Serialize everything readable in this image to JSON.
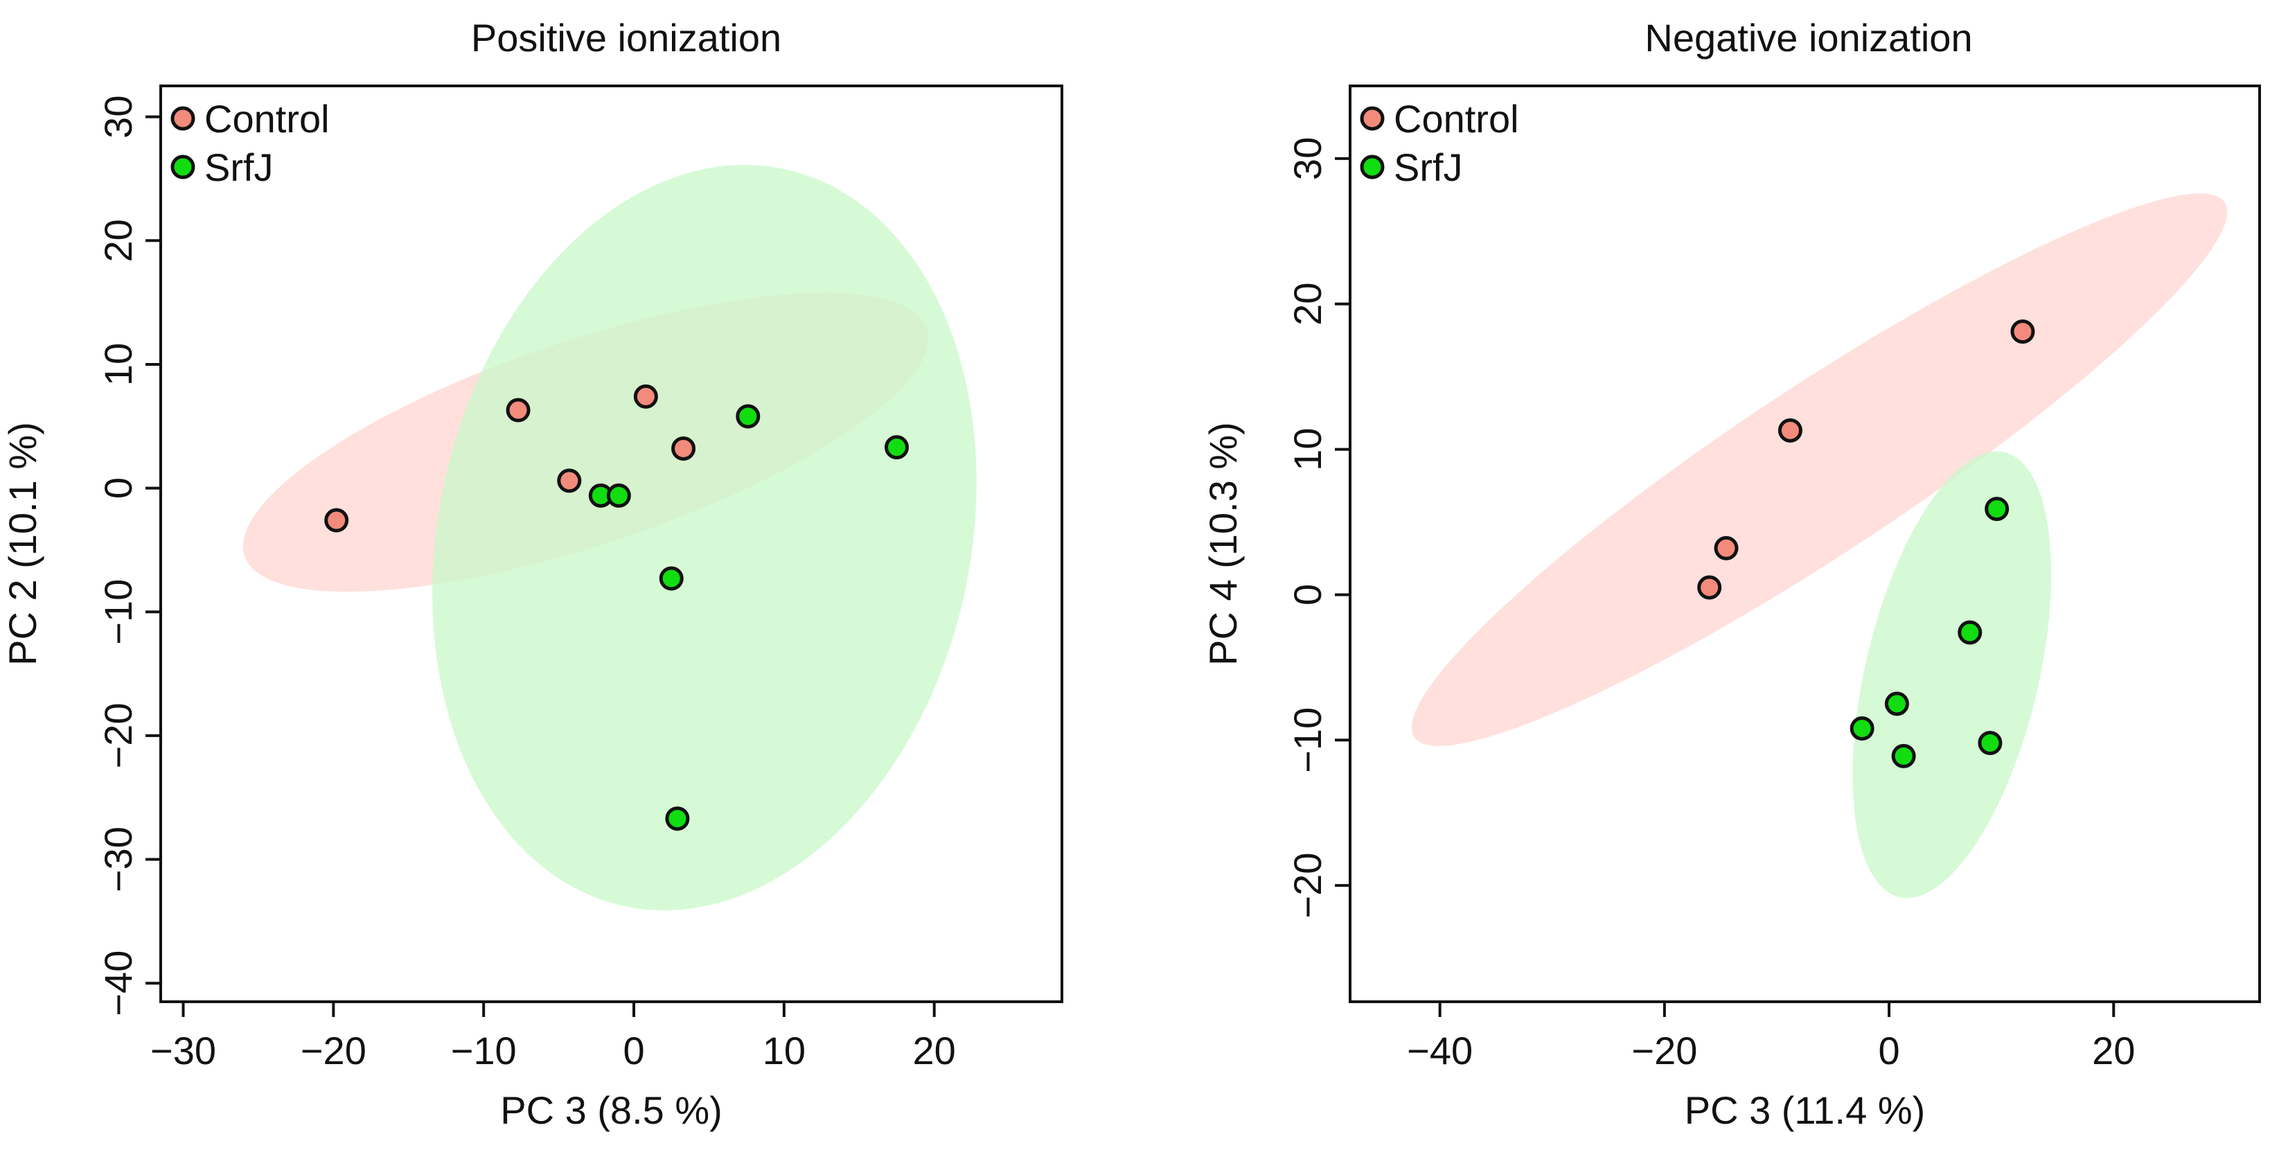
{
  "colors": {
    "control_point": "#f28b7c",
    "control_ellipse": "#ffd6d2",
    "srfj_point": "#11dd11",
    "srfj_ellipse": "#c8f8c8",
    "axis": "#111111"
  },
  "chart_data": [
    {
      "type": "scatter",
      "title": "Positive ionization",
      "xlabel": "PC 3 (8.5 %)",
      "ylabel": "PC 2 (10.1 %)",
      "xlim": [
        -31.5,
        28.5
      ],
      "ylim": [
        -41.5,
        32.5
      ],
      "xticks": [
        -30,
        -20,
        -10,
        0,
        10,
        20
      ],
      "yticks": [
        -40,
        -30,
        -20,
        -10,
        0,
        10,
        20,
        30
      ],
      "xtick_labels": [
        "−30",
        "−20",
        "−10",
        "0",
        "10",
        "20"
      ],
      "ytick_labels": [
        "−40",
        "−30",
        "−20",
        "−10",
        "0",
        "10",
        "20",
        "30"
      ],
      "legend_position": "top-left",
      "grid": false,
      "series": [
        {
          "name": "Control",
          "color_key": "control",
          "points": [
            [
              -19.8,
              -2.6
            ],
            [
              -7.7,
              6.3
            ],
            [
              -4.3,
              0.6
            ],
            [
              0.8,
              7.4
            ],
            [
              3.3,
              3.2
            ]
          ],
          "ellipse": {
            "center": [
              -3.2,
              3.7
            ],
            "semi_axes": [
              24.5,
              8.0
            ],
            "angle_deg": 22
          }
        },
        {
          "name": "SrfJ",
          "color_key": "srfj",
          "points": [
            [
              -2.2,
              -0.6
            ],
            [
              -1.0,
              -0.6
            ],
            [
              2.5,
              -7.3
            ],
            [
              7.6,
              5.8
            ],
            [
              17.5,
              3.3
            ],
            [
              2.9,
              -26.7
            ]
          ],
          "ellipse": {
            "center": [
              4.7,
              -4.0
            ],
            "semi_axes": [
              17.9,
              30.0
            ],
            "angle_deg": -15
          }
        }
      ]
    },
    {
      "type": "scatter",
      "title": "Negative ionization",
      "xlabel": "PC 3 (11.4 %)",
      "ylabel": "PC 4 (10.3 %)",
      "xlim": [
        -48,
        33
      ],
      "ylim": [
        -28,
        35
      ],
      "xticks": [
        -40,
        -20,
        0,
        20
      ],
      "yticks": [
        -20,
        -10,
        0,
        10,
        20,
        30
      ],
      "xtick_labels": [
        "−40",
        "−20",
        "0",
        "20"
      ],
      "ytick_labels": [
        "−20",
        "−10",
        "0",
        "10",
        "20",
        "30"
      ],
      "legend_position": "top-left",
      "grid": false,
      "series": [
        {
          "name": "Control",
          "color_key": "control",
          "points": [
            [
              -16.0,
              0.5
            ],
            [
              -14.5,
              3.2
            ],
            [
              -8.8,
              11.3
            ],
            [
              11.9,
              18.1
            ]
          ],
          "ellipse": {
            "center": [
              -6.2,
              8.6
            ],
            "semi_axes": [
              40.5,
              6.0
            ],
            "angle_deg": 27
          }
        },
        {
          "name": "SrfJ",
          "color_key": "srfj",
          "points": [
            [
              9.6,
              5.9
            ],
            [
              7.2,
              -2.6
            ],
            [
              0.7,
              -7.5
            ],
            [
              -2.4,
              -9.2
            ],
            [
              1.3,
              -11.1
            ],
            [
              9.0,
              -10.2
            ]
          ],
          "ellipse": {
            "center": [
              5.6,
              -5.5
            ],
            "semi_axes": [
              16.0,
              7.5
            ],
            "angle_deg": 73
          }
        }
      ]
    }
  ]
}
